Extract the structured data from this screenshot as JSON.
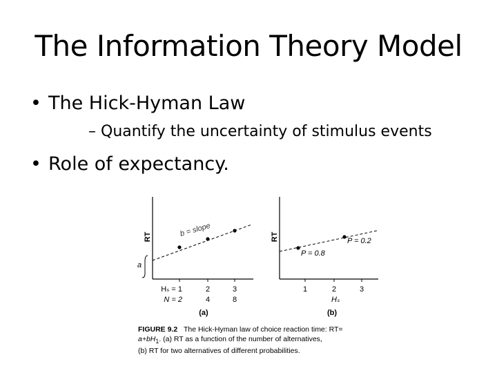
{
  "slide": {
    "title": "The Information Theory Model",
    "bullets": [
      {
        "mark": "•",
        "text": "The Hick-Hyman Law"
      },
      {
        "mark": "•",
        "text": "Role of expectancy."
      }
    ],
    "sub_bullet": {
      "mark": "–",
      "text": "Quantify the uncertainty of stimulus events"
    }
  },
  "figure": {
    "panel_a": {
      "ylabel": "RT",
      "intercept_label": "a",
      "slope_label": "b = slope",
      "x_row1": [
        "Hₛ = 1",
        "2",
        "3"
      ],
      "x_row2": [
        "N = 2",
        "4",
        "8"
      ],
      "panel_label": "(a)"
    },
    "panel_b": {
      "ylabel": "RT",
      "p_high_label": "P = 0.2",
      "p_low_label": "P = 0.8",
      "xticks": [
        "1",
        "2",
        "3"
      ],
      "xlabel": "Hₛ",
      "panel_label": "(b)"
    },
    "caption": {
      "label": "FIGURE 9.2",
      "text_1": "The Hick-Hyman law of choice reaction time: RT=",
      "text_2": "a+bH",
      "text_2_sub": "1",
      "text_2b": ". (a) RT as a function of the number of alternatives,",
      "text_3": "(b) RT for two alternatives of different probabilities."
    }
  }
}
